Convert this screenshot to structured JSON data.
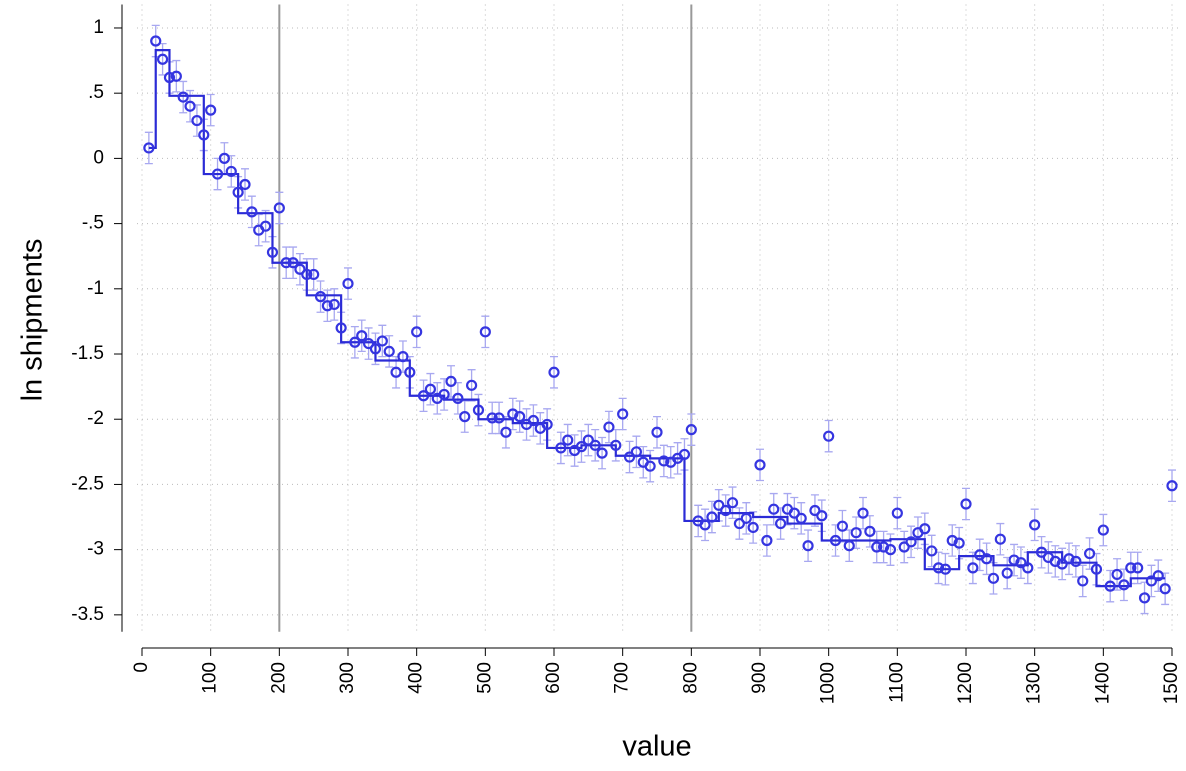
{
  "chart_data": {
    "type": "scatter-step",
    "x_label": "value",
    "y_label": "ln shipments",
    "xlim": [
      0,
      1500
    ],
    "ylim": [
      -3.63,
      1.18
    ],
    "xticks": [
      0,
      100,
      200,
      300,
      400,
      500,
      600,
      700,
      800,
      900,
      1000,
      1100,
      1200,
      1300,
      1400,
      1500
    ],
    "yticks": [
      1,
      {
        "value": 0.5,
        "label": ".5"
      },
      0,
      {
        "value": -0.5,
        "label": "-.5"
      },
      -1,
      -1.5,
      -2,
      -2.5,
      -3,
      -3.5
    ],
    "grid": true,
    "reference_lines": [
      200,
      800
    ],
    "points": {
      "color": "#3535e0",
      "error_color": "#a8a8f0",
      "error": 0.12,
      "x": [
        10,
        20,
        30,
        40,
        50,
        60,
        70,
        80,
        90,
        100,
        110,
        120,
        130,
        140,
        150,
        160,
        170,
        180,
        190,
        200,
        210,
        220,
        230,
        240,
        250,
        260,
        270,
        280,
        290,
        300,
        310,
        320,
        330,
        340,
        350,
        360,
        370,
        380,
        390,
        400,
        410,
        420,
        430,
        440,
        450,
        460,
        470,
        480,
        490,
        500,
        510,
        520,
        530,
        540,
        550,
        560,
        570,
        580,
        590,
        600,
        610,
        620,
        630,
        640,
        650,
        660,
        670,
        680,
        690,
        700,
        710,
        720,
        730,
        740,
        750,
        760,
        770,
        780,
        790,
        800,
        810,
        820,
        830,
        840,
        850,
        860,
        870,
        880,
        890,
        900,
        910,
        920,
        930,
        940,
        950,
        960,
        970,
        980,
        990,
        1000,
        1010,
        1020,
        1030,
        1040,
        1050,
        1060,
        1070,
        1080,
        1090,
        1100,
        1110,
        1120,
        1130,
        1140,
        1150,
        1160,
        1170,
        1180,
        1190,
        1200,
        1210,
        1220,
        1230,
        1240,
        1250,
        1260,
        1270,
        1280,
        1290,
        1300,
        1310,
        1320,
        1330,
        1340,
        1350,
        1360,
        1370,
        1380,
        1390,
        1400,
        1410,
        1420,
        1430,
        1440,
        1450,
        1460,
        1470,
        1480,
        1490,
        1500
      ],
      "values": [
        0.08,
        0.9,
        0.76,
        0.62,
        0.63,
        0.47,
        0.4,
        0.29,
        0.18,
        0.37,
        -0.12,
        0,
        -0.1,
        -0.26,
        -0.2,
        -0.41,
        -0.55,
        -0.52,
        -0.72,
        -0.38,
        -0.8,
        -0.8,
        -0.85,
        -0.89,
        -0.89,
        -1.06,
        -1.13,
        -1.12,
        -1.3,
        -0.96,
        -1.41,
        -1.36,
        -1.42,
        -1.46,
        -1.4,
        -1.48,
        -1.64,
        -1.52,
        -1.64,
        -1.33,
        -1.82,
        -1.77,
        -1.84,
        -1.81,
        -1.71,
        -1.84,
        -1.98,
        -1.74,
        -1.93,
        -1.33,
        -1.99,
        -1.99,
        -2.1,
        -1.96,
        -1.98,
        -2.04,
        -2.01,
        -2.07,
        -2.04,
        -1.64,
        -2.22,
        -2.16,
        -2.24,
        -2.21,
        -2.16,
        -2.2,
        -2.26,
        -2.06,
        -2.2,
        -1.96,
        -2.29,
        -2.25,
        -2.33,
        -2.36,
        -2.1,
        -2.32,
        -2.33,
        -2.3,
        -2.27,
        -2.08,
        -2.78,
        -2.81,
        -2.75,
        -2.66,
        -2.7,
        -2.64,
        -2.8,
        -2.76,
        -2.83,
        -2.35,
        -2.93,
        -2.69,
        -2.8,
        -2.69,
        -2.72,
        -2.76,
        -2.97,
        -2.7,
        -2.74,
        -2.13,
        -2.93,
        -2.82,
        -2.97,
        -2.87,
        -2.72,
        -2.86,
        -2.98,
        -2.98,
        -3.0,
        -2.72,
        -2.98,
        -2.94,
        -2.87,
        -2.84,
        -3.01,
        -3.14,
        -3.15,
        -2.93,
        -2.95,
        -2.65,
        -3.14,
        -3.04,
        -3.07,
        -3.22,
        -2.92,
        -3.18,
        -3.08,
        -3.1,
        -3.14,
        -2.81,
        -3.02,
        -3.06,
        -3.09,
        -3.11,
        -3.07,
        -3.09,
        -3.24,
        -3.03,
        -3.15,
        -2.85,
        -3.28,
        -3.19,
        -3.27,
        -3.14,
        -3.14,
        -3.37,
        -3.24,
        -3.2,
        -3.3,
        -2.51
      ]
    },
    "step": {
      "color": "#2b2bd6",
      "bins": [
        10,
        20,
        40,
        90,
        140,
        190,
        240,
        290,
        340,
        390,
        440,
        490,
        540,
        590,
        640,
        690,
        740,
        790,
        840,
        890,
        940,
        990,
        1040,
        1090,
        1140,
        1190,
        1240,
        1290,
        1340,
        1390,
        1440,
        1490
      ],
      "values": [
        0.08,
        0.83,
        0.48,
        -0.12,
        -0.42,
        -0.8,
        -1.05,
        -1.41,
        -1.55,
        -1.82,
        -1.85,
        -2.0,
        -2.03,
        -2.22,
        -2.2,
        -2.28,
        -2.3,
        -2.78,
        -2.72,
        -2.75,
        -2.8,
        -2.93,
        -2.93,
        -2.92,
        -3.15,
        -3.05,
        -3.12,
        -3.02,
        -3.1,
        -3.28,
        -3.22
      ]
    }
  }
}
